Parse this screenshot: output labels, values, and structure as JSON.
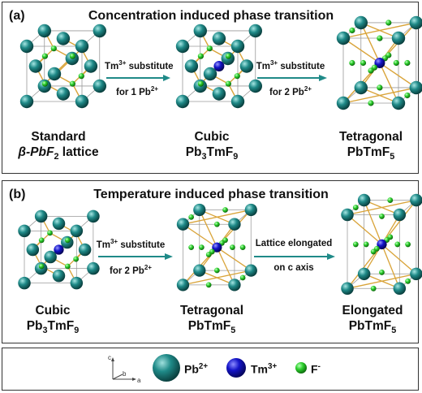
{
  "panel_a": {
    "label": "(a)",
    "title": "Concentration induced phase transition",
    "arrow1": {
      "sub_line1": "Tm",
      "sub_sup1": "3+",
      "sub_rest1": " substitute",
      "line2": "for 1 Pb",
      "sup2": "2+"
    },
    "arrow2": {
      "sub_line1": "Tm",
      "sub_sup1": "3+",
      "sub_rest1": " substitute",
      "line2": "for 2 Pb",
      "sup2": "2+"
    },
    "cap1": {
      "line1": "Standard",
      "line2_pre": "β-PbF",
      "line2_sub": "2",
      "line2_post": " lattice"
    },
    "cap2": {
      "line1": "Cubic",
      "line2_pre": "Pb",
      "line2_sub1": "3",
      "line2_mid": "TmF",
      "line2_sub2": "9"
    },
    "cap3": {
      "line1": "Tetragonal",
      "line2_pre": "PbTmF",
      "line2_sub": "5"
    }
  },
  "panel_b": {
    "label": "(b)",
    "title": "Temperature induced phase transition",
    "arrow1": {
      "sub_line1": "Tm",
      "sub_sup1": "3+",
      "sub_rest1": " substitute",
      "line2": "for 2 Pb",
      "sup2": "2+"
    },
    "arrow2": {
      "line1": "Lattice elongated",
      "line2": "on c axis"
    },
    "cap1": {
      "line1": "Cubic",
      "line2_pre": "Pb",
      "line2_sub1": "3",
      "line2_mid": "TmF",
      "line2_sub2": "9"
    },
    "cap2": {
      "line1": "Tetragonal",
      "line2_pre": "PbTmF",
      "line2_sub": "5"
    },
    "cap3": {
      "line1": "Elongated",
      "line2_pre": "PbTmF",
      "line2_sub": "5"
    }
  },
  "legend": {
    "axis_c": "c",
    "axis_b": "b",
    "axis_a": "a",
    "pb_pre": "Pb",
    "pb_sup": "2+",
    "tm_pre": "Tm",
    "tm_sup": "3+",
    "f_pre": "F",
    "f_sup": "-"
  },
  "colors": {
    "pb": "#1f8a88",
    "tm": "#1414c8",
    "f": "#2ed12e",
    "bond": "#d9a43a",
    "arrow": "#1f8a88"
  }
}
